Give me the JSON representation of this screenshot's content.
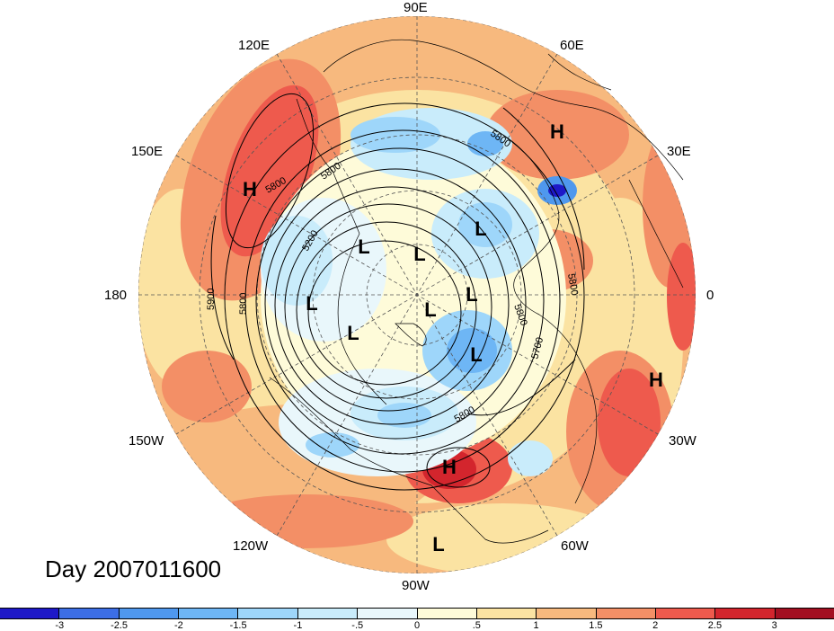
{
  "title": "Day 2007011600",
  "longitude_labels": {
    "lon_90e": "90E",
    "lon_60e": "60E",
    "lon_120e": "120E",
    "lon_150e": "150E",
    "lon_30e": "30E",
    "lon_180": "180",
    "lon_0": "0",
    "lon_150w": "150W",
    "lon_30w": "30W",
    "lon_120w": "120W",
    "lon_60w": "60W",
    "lon_90w": "90W"
  },
  "pressure_centers": [
    {
      "label": "H"
    },
    {
      "label": "H"
    },
    {
      "label": "H"
    },
    {
      "label": "H"
    },
    {
      "label": "L"
    },
    {
      "label": "L"
    },
    {
      "label": "L"
    },
    {
      "label": "L"
    },
    {
      "label": "L"
    },
    {
      "label": "L"
    },
    {
      "label": "L"
    },
    {
      "label": "L"
    },
    {
      "label": "L"
    }
  ],
  "contour_labels": [
    "5800",
    "5800",
    "5800",
    "5800",
    "5900",
    "5200",
    "5800",
    "5700",
    "5800",
    "5800"
  ],
  "colorbar": {
    "colors": [
      "#1e19c8",
      "#3c6ee6",
      "#4f98ee",
      "#6eb6f5",
      "#9ed6fa",
      "#c9ecfb",
      "#e9f7fb",
      "#fefbd9",
      "#fbe3a2",
      "#f7b97e",
      "#f38f66",
      "#ee5a4d",
      "#d3252d",
      "#a30f21"
    ],
    "ticks": [
      "-3",
      "-2.5",
      "-2",
      "-1.5",
      "-1",
      "-.5",
      "0",
      ".5",
      "1",
      "1.5",
      "2",
      "2.5",
      "3"
    ]
  }
}
